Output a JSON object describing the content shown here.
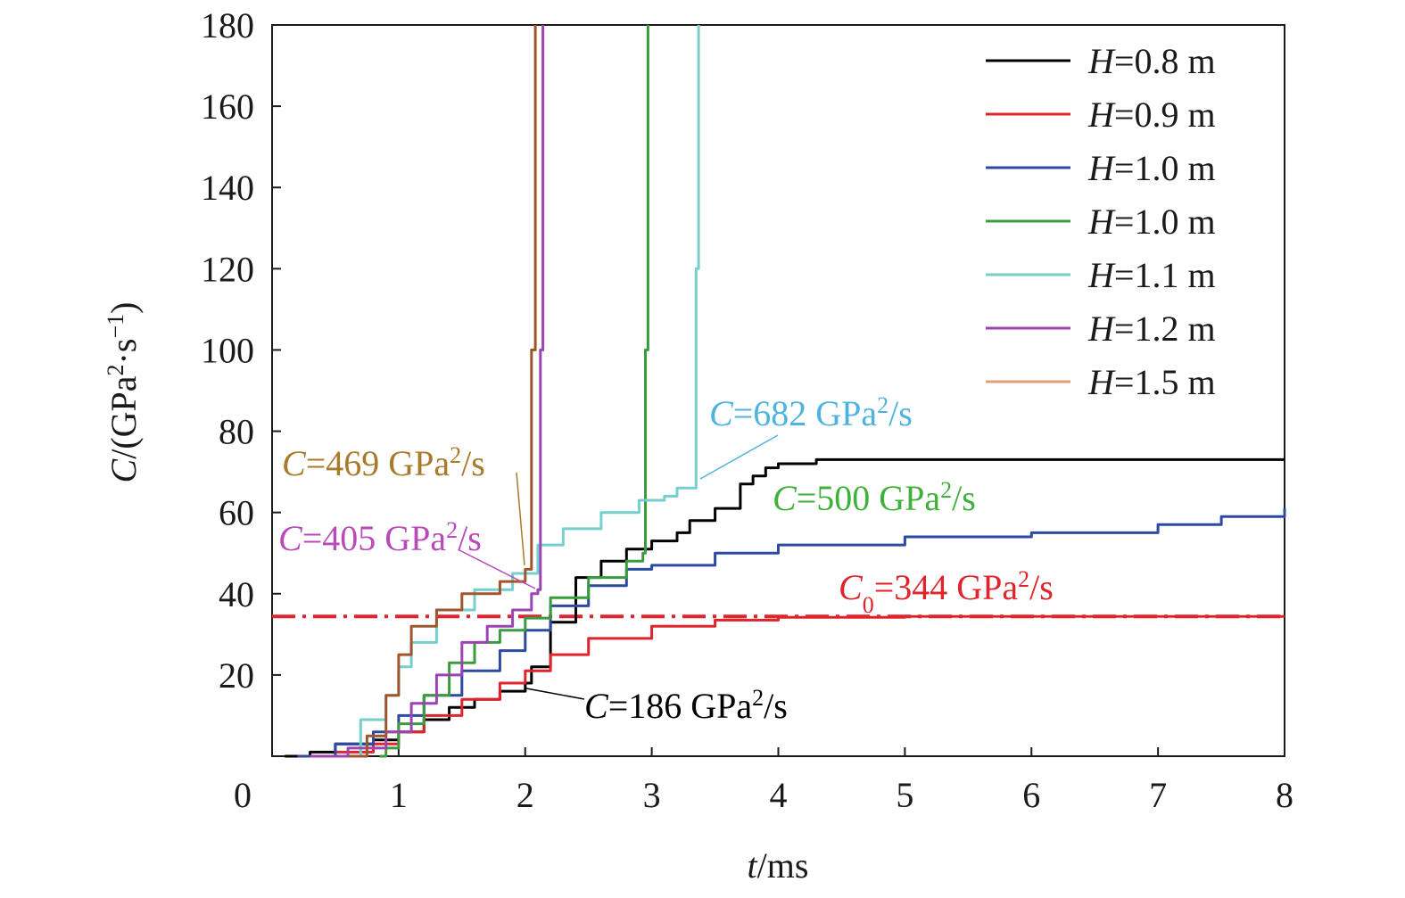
{
  "chart_data": {
    "type": "line",
    "xlabel": "t/ms",
    "ylabel": "C/(GPa²·s⁻¹)",
    "xlim": [
      0,
      8
    ],
    "ylim": [
      0,
      180
    ],
    "x_ticks": [
      "0",
      "1",
      "2",
      "3",
      "4",
      "5",
      "6",
      "7",
      "8"
    ],
    "y_ticks": [
      "20",
      "40",
      "60",
      "80",
      "100",
      "120",
      "140",
      "160",
      "180"
    ],
    "grid": false,
    "legend_position": "top-right",
    "series": [
      {
        "name": "H=0.8 m",
        "color": "#000000",
        "x": [
          0.1,
          0.3,
          0.5,
          0.8,
          1.0,
          1.2,
          1.4,
          1.6,
          1.8,
          2.0,
          2.05,
          2.2,
          2.4,
          2.6,
          2.8,
          3.0,
          3.2,
          3.3,
          3.5,
          3.7,
          3.8,
          3.9,
          4.0,
          4.3,
          5.0,
          8.0
        ],
        "y": [
          0,
          1,
          3,
          4,
          6,
          9,
          12,
          14,
          16,
          18,
          22,
          33,
          44,
          48,
          51,
          53,
          55,
          58,
          61,
          67,
          69,
          71,
          72,
          73,
          73,
          73
        ]
      },
      {
        "name": "H=0.9 m",
        "color": "#e0242b",
        "x": [
          0.25,
          0.5,
          0.8,
          1.0,
          1.2,
          1.5,
          1.8,
          2.0,
          2.2,
          2.5,
          3.0,
          3.5,
          4.0,
          5.0,
          8.0
        ],
        "y": [
          0,
          1,
          3,
          6,
          10,
          14,
          18,
          21,
          25,
          29,
          32,
          33.5,
          34.2,
          34.4,
          34.4
        ]
      },
      {
        "name": "H=1.0 m",
        "color": "#2e4aa0",
        "x": [
          0.2,
          0.5,
          0.8,
          1.0,
          1.2,
          1.5,
          1.8,
          2.0,
          2.2,
          2.5,
          2.8,
          3.0,
          3.5,
          4.0,
          5.0,
          6.0,
          7.0,
          7.5,
          8.0
        ],
        "y": [
          0,
          3,
          6,
          10,
          15,
          21,
          26,
          31,
          37,
          42,
          46,
          47,
          50,
          52,
          54,
          55,
          57,
          59,
          61
        ]
      },
      {
        "name": "H=1.0 m",
        "color": "#3a9c3c",
        "x": [
          0.85,
          0.9,
          1.0,
          1.2,
          1.4,
          1.6,
          1.8,
          2.0,
          2.2,
          2.5,
          2.8,
          2.93,
          2.95,
          2.97
        ],
        "y": [
          0,
          2,
          8,
          15,
          23,
          28,
          31,
          34,
          39,
          44,
          48,
          50,
          100,
          180
        ]
      },
      {
        "name": "H=1.1 m",
        "color": "#75cfcc",
        "x": [
          0.6,
          0.7,
          0.9,
          1.0,
          1.1,
          1.3,
          1.6,
          1.9,
          2.1,
          2.3,
          2.6,
          2.9,
          3.1,
          3.2,
          3.33,
          3.35,
          3.37
        ],
        "y": [
          0,
          9,
          15,
          22,
          28,
          36,
          41,
          45,
          52,
          56,
          60,
          63,
          64,
          66,
          66,
          120,
          180
        ]
      },
      {
        "name": "H=1.2 m",
        "color": "#9b44b4",
        "x": [
          0.3,
          0.6,
          0.9,
          1.1,
          1.3,
          1.5,
          1.7,
          1.9,
          2.05,
          2.1,
          2.12,
          2.14
        ],
        "y": [
          0,
          2,
          6,
          13,
          20,
          28,
          32,
          36,
          40,
          41,
          100,
          180
        ]
      },
      {
        "name": "H=1.5 m",
        "color": "#a0562c",
        "x": [
          0.6,
          0.75,
          0.9,
          1.0,
          1.1,
          1.3,
          1.5,
          1.8,
          2.0,
          2.05,
          2.08
        ],
        "y": [
          0,
          5,
          15,
          25,
          32,
          36,
          40,
          43,
          46,
          100,
          180
        ]
      }
    ],
    "reference_line": {
      "y": 34.4,
      "color": "#e0242b",
      "style": "dash-dot"
    },
    "legend": [
      {
        "italic": "H",
        "text": "=0.8 m",
        "color": "#000000"
      },
      {
        "italic": "H",
        "text": "=0.9 m",
        "color": "#e0242b"
      },
      {
        "italic": "H",
        "text": "=1.0 m",
        "color": "#2e4aa0"
      },
      {
        "italic": "H",
        "text": "=1.0 m",
        "color": "#3a9c3c"
      },
      {
        "italic": "H",
        "text": "=1.1 m",
        "color": "#75cfcc"
      },
      {
        "italic": "H",
        "text": "=1.2 m",
        "color": "#9b44b4"
      },
      {
        "italic": "H",
        "text": "=1.5 m",
        "color": "#e0a07a"
      }
    ],
    "annotations": [
      {
        "italic": "C",
        "sub": "",
        "text": "=682 GPa",
        "sup": "2",
        "tail": "/s",
        "color": "#4fb3df"
      },
      {
        "italic": "C",
        "sub": "",
        "text": "=469 GPa",
        "sup": "2",
        "tail": "/s",
        "color": "#a87a2a"
      },
      {
        "italic": "C",
        "sub": "",
        "text": "=500 GPa",
        "sup": "2",
        "tail": "/s",
        "color": "#3fb03a"
      },
      {
        "italic": "C",
        "sub": "",
        "text": "=405 GPa",
        "sup": "2",
        "tail": "/s",
        "color": "#b94ab9"
      },
      {
        "italic": "C",
        "sub": "0",
        "text": "=344 GPa",
        "sup": "2",
        "tail": "/s",
        "color": "#e0242b"
      },
      {
        "italic": "C",
        "sub": "",
        "text": "=186 GPa",
        "sup": "2",
        "tail": "/s",
        "color": "#000000"
      }
    ]
  }
}
